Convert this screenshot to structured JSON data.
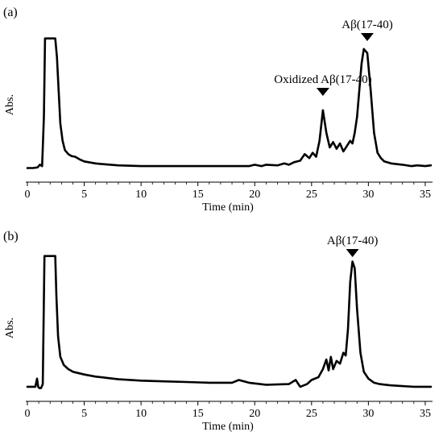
{
  "chart_data": [
    {
      "type": "line",
      "panel_label": "(a)",
      "xlabel": "Time (min)",
      "ylabel": "Abs.",
      "xlim": [
        0,
        35.5
      ],
      "ylim": [
        0,
        100
      ],
      "xticks": [
        0,
        5,
        10,
        15,
        20,
        25,
        30,
        35
      ],
      "grid": false,
      "line_color": "#000000",
      "annotations": [
        {
          "text": "Oxidized Aβ(17-40)",
          "x": 26.0,
          "marker": "down-triangle"
        },
        {
          "text": "Aβ(17-40)",
          "x": 29.9,
          "marker": "down-triangle"
        }
      ],
      "series": [
        {
          "x": [
            0.0,
            0.5,
            0.9,
            1.1,
            1.3,
            1.45,
            1.55,
            1.65,
            2.0,
            2.45,
            2.6,
            2.75,
            2.9,
            3.1,
            3.3,
            3.6,
            3.9,
            4.2,
            4.6,
            5.0,
            6.0,
            7.0,
            8.0,
            10.0,
            12.0,
            14.0,
            16.0,
            18.0,
            19.5,
            20.0,
            20.6,
            21.0,
            22.0,
            22.6,
            23.0,
            23.5,
            24.0,
            24.4,
            24.8,
            25.1,
            25.4,
            25.7,
            26.0,
            26.3,
            26.6,
            26.9,
            27.2,
            27.5,
            27.8,
            28.1,
            28.4,
            28.6,
            28.8,
            29.0,
            29.2,
            29.4,
            29.6,
            29.9,
            30.2,
            30.5,
            30.8,
            31.1,
            31.4,
            32.0,
            33.0,
            33.8,
            34.3,
            35.0,
            35.5
          ],
          "y": [
            1.5,
            1.5,
            2.0,
            4.0,
            3.0,
            40.0,
            99.0,
            99.0,
            99.0,
            99.0,
            85.0,
            60.0,
            35.0,
            22.0,
            15.0,
            12.0,
            10.5,
            10.0,
            8.0,
            6.5,
            5.0,
            4.2,
            3.5,
            3.0,
            3.0,
            3.0,
            3.0,
            3.0,
            3.0,
            4.0,
            3.0,
            4.0,
            3.5,
            5.0,
            4.0,
            6.0,
            7.0,
            12.0,
            9.0,
            13.0,
            10.0,
            22.0,
            45.0,
            28.0,
            17.0,
            21.0,
            16.0,
            20.0,
            14.0,
            18.0,
            22.0,
            20.0,
            28.0,
            40.0,
            60.0,
            80.0,
            91.0,
            88.0,
            60.0,
            28.0,
            13.0,
            9.0,
            6.5,
            5.0,
            4.0,
            3.0,
            3.5,
            3.0,
            3.5
          ]
        }
      ]
    },
    {
      "type": "line",
      "panel_label": "(b)",
      "xlabel": "Time (min)",
      "ylabel": "Abs.",
      "xlim": [
        0,
        35.5
      ],
      "ylim": [
        0,
        100
      ],
      "xticks": [
        0,
        5,
        10,
        15,
        20,
        25,
        30,
        35
      ],
      "grid": false,
      "line_color": "#000000",
      "annotations": [
        {
          "text": "Aβ(17-40)",
          "x": 28.6,
          "marker": "down-triangle"
        }
      ],
      "series": [
        {
          "x": [
            0.0,
            0.7,
            0.85,
            0.95,
            1.05,
            1.2,
            1.35,
            1.5,
            1.6,
            1.7,
            2.0,
            2.3,
            2.45,
            2.55,
            2.7,
            2.9,
            3.2,
            3.6,
            4.0,
            5.0,
            6.0,
            7.0,
            8.0,
            10.0,
            12.0,
            14.0,
            16.0,
            18.0,
            18.6,
            19.5,
            21.0,
            23.0,
            23.6,
            24.0,
            24.6,
            25.0,
            25.6,
            26.0,
            26.3,
            26.5,
            26.7,
            26.9,
            27.2,
            27.5,
            27.8,
            28.0,
            28.2,
            28.4,
            28.6,
            28.8,
            29.0,
            29.3,
            29.6,
            30.0,
            30.5,
            31.0,
            31.5,
            32.0,
            33.0,
            34.0,
            35.0,
            35.5
          ],
          "y": [
            3.0,
            3.0,
            9.0,
            3.0,
            2.0,
            2.0,
            5.0,
            99.0,
            99.0,
            99.0,
            99.0,
            99.0,
            99.0,
            70.0,
            40.0,
            25.0,
            19.0,
            16.0,
            14.0,
            12.0,
            10.5,
            9.5,
            8.5,
            7.5,
            7.0,
            6.5,
            6.0,
            6.0,
            8.0,
            6.0,
            4.5,
            5.0,
            8.0,
            3.0,
            5.0,
            8.0,
            10.0,
            16.0,
            23.0,
            15.0,
            25.0,
            16.0,
            22.0,
            20.0,
            28.0,
            26.0,
            45.0,
            80.0,
            95.0,
            90.0,
            60.0,
            28.0,
            14.0,
            9.0,
            6.0,
            5.0,
            4.5,
            4.0,
            3.5,
            3.0,
            3.0,
            3.0
          ]
        }
      ]
    }
  ]
}
